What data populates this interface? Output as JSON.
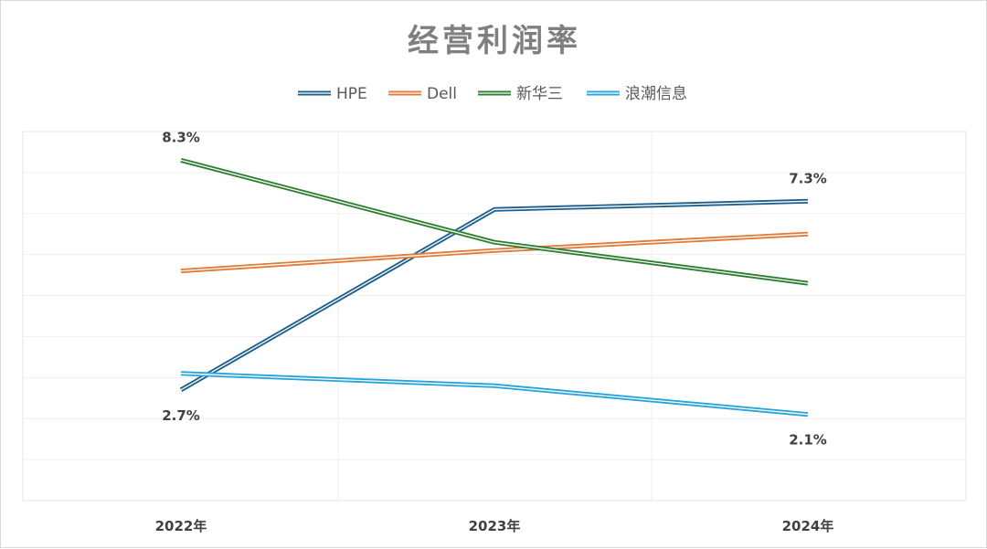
{
  "chart_data": {
    "type": "line",
    "title": "经营利润率",
    "categories": [
      "2022年",
      "2023年",
      "2024年"
    ],
    "series": [
      {
        "name": "HPE",
        "color": "#1f5f8b",
        "values": [
          2.7,
          7.1,
          7.3
        ]
      },
      {
        "name": "Dell",
        "color": "#e07b39",
        "values": [
          5.6,
          6.1,
          6.5
        ]
      },
      {
        "name": "新华三",
        "color": "#2e7d32",
        "values": [
          8.3,
          6.3,
          5.3
        ]
      },
      {
        "name": "浪潮信息",
        "color": "#29a3d9",
        "values": [
          3.1,
          2.8,
          2.1
        ]
      }
    ],
    "data_labels": [
      {
        "series": 2,
        "point": 0,
        "text": "8.3%",
        "position": "above"
      },
      {
        "series": 0,
        "point": 0,
        "text": "2.7%",
        "position": "below"
      },
      {
        "series": 0,
        "point": 2,
        "text": "7.3%",
        "position": "above"
      },
      {
        "series": 3,
        "point": 2,
        "text": "2.1%",
        "position": "below"
      }
    ],
    "ylim": [
      0,
      9
    ],
    "xlabel": "",
    "ylabel": "",
    "grid": true,
    "legend": "top"
  }
}
